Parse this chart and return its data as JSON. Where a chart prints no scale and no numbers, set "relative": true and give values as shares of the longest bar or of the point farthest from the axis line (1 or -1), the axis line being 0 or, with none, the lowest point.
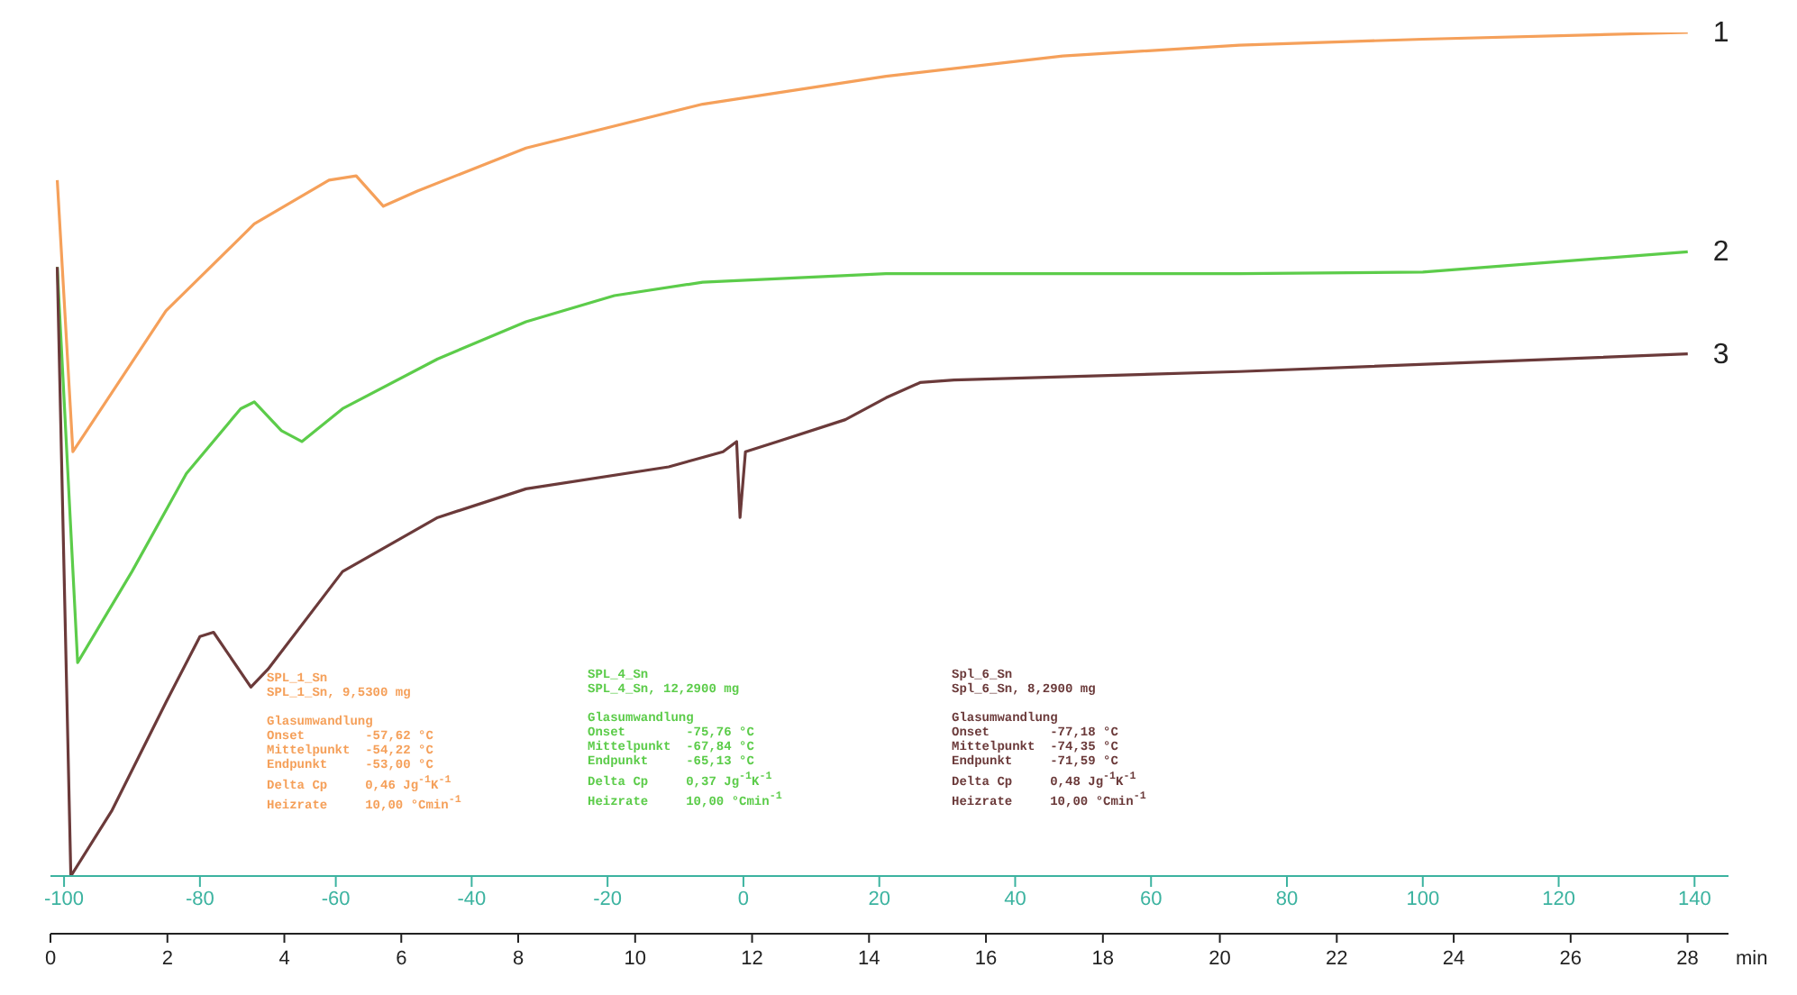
{
  "chart_data": {
    "type": "line",
    "relative": true,
    "xlim": [
      -102,
      145
    ],
    "xticks": [
      -100,
      -80,
      -60,
      -40,
      -20,
      0,
      20,
      40,
      60,
      80,
      100,
      120,
      140
    ],
    "x2lim": [
      0,
      28.7
    ],
    "x2ticks": [
      0,
      2,
      4,
      6,
      8,
      10,
      12,
      14,
      16,
      18,
      20,
      22,
      24,
      26,
      28
    ],
    "x2label": "min",
    "grid": false,
    "legend": false,
    "marker": "none",
    "line_style": "solid",
    "series": [
      {
        "name": "1",
        "color": "#f5a05a",
        "x": [
          -101,
          -98.7,
          -85,
          -72,
          -61,
          -57,
          -53,
          -48,
          -32,
          -6,
          21,
          47,
          73,
          100,
          139
        ],
        "values": [
          0.825,
          0.503,
          0.67,
          0.773,
          0.825,
          0.83,
          0.794,
          0.812,
          0.863,
          0.915,
          0.948,
          0.972,
          0.985,
          0.992,
          1
        ]
      },
      {
        "name": "2",
        "color": "#5ccc4a",
        "x": [
          -101,
          -98,
          -90,
          -82,
          -74,
          -72,
          -68,
          -65,
          -59,
          -45,
          -32,
          -19,
          -6,
          21,
          73,
          100,
          139
        ],
        "values": [
          0.722,
          0.253,
          0.361,
          0.477,
          0.554,
          0.562,
          0.528,
          0.515,
          0.554,
          0.613,
          0.657,
          0.688,
          0.704,
          0.714,
          0.714,
          0.716,
          0.74
        ]
      },
      {
        "name": "3",
        "color": "#6b3a3a",
        "x": [
          -101,
          -99,
          -93,
          -85,
          -80,
          -78,
          -72.5,
          -70,
          -59,
          -45,
          -32,
          -11,
          -3,
          -1,
          -0.5,
          0.3,
          5,
          15,
          21,
          26,
          31,
          73,
          139
        ],
        "values": [
          0.722,
          0,
          0.077,
          0.206,
          0.284,
          0.289,
          0.224,
          0.245,
          0.361,
          0.425,
          0.459,
          0.485,
          0.503,
          0.515,
          0.425,
          0.503,
          0.515,
          0.541,
          0.567,
          0.585,
          0.588,
          0.598,
          0.619
        ]
      }
    ],
    "annotations": [
      "SPL_1_Sn\nSPL_1_Sn, 9,5300 mg\n\nGlasumwandlung\nOnset        -57,62 °C\nMittelpunkt  -54,22 °C\nEndpunkt     -53,00 °C\nDelta Cp     0,46 Jg$^{-1}$K$^{-1}$\nHeizrate     10,00 °Cmin$^{-1}$",
      "SPL_4_Sn\nSPL_4_Sn, 12,2900 mg\n\nGlasumwandlung\nOnset        -75,76 °C\nMittelpunkt  -67,84 °C\nEndpunkt     -65,13 °C\nDelta Cp     0,37 Jg$^{-1}$K$^{-1}$\nHeizrate     10,00 °Cmin$^{-1}$",
      "Spl_6_Sn\nSpl_6_Sn, 8,2900 mg\n\nGlasumwandlung\nOnset        -77,18 °C\nMittelpunkt  -74,35 °C\nEndpunkt     -71,59 °C\nDelta Cp     0,48 Jg$^{-1}$K$^{-1}$\nHeizrate     10,00 °Cmin$^{-1}$"
    ]
  }
}
